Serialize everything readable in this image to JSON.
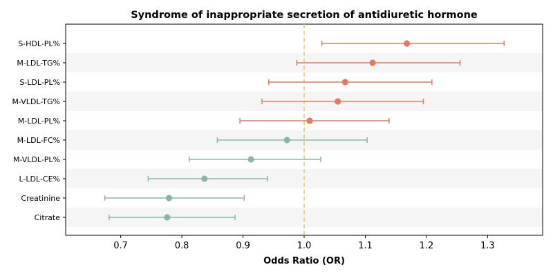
{
  "chart_data": {
    "type": "scatter",
    "title": "Syndrome of inappropriate secretion of antidiuretic hormone",
    "xlabel": "Odds Ratio (OR)",
    "ylabel": "",
    "xlim": [
      0.61,
      1.39
    ],
    "x_ticks": [
      "0.7",
      "0.8",
      "0.9",
      "1.0",
      "1.1",
      "1.2",
      "1.3"
    ],
    "reference_line": 1.0,
    "colors": {
      "positive": "#e07b61",
      "negative": "#86b9a1",
      "reference": "#f0c27a",
      "band": "#f5f5f5"
    },
    "rows": [
      {
        "label": "S-HDL-PL%",
        "or": 1.168,
        "lower": 1.029,
        "upper": 1.327,
        "group": "positive"
      },
      {
        "label": "M-LDL-TG%",
        "or": 1.112,
        "lower": 0.988,
        "upper": 1.255,
        "group": "positive"
      },
      {
        "label": "S-LDL-PL%",
        "or": 1.067,
        "lower": 0.942,
        "upper": 1.209,
        "group": "positive"
      },
      {
        "label": "M-VLDL-TG%",
        "or": 1.055,
        "lower": 0.931,
        "upper": 1.195,
        "group": "positive"
      },
      {
        "label": "M-LDL-PL%",
        "or": 1.009,
        "lower": 0.895,
        "upper": 1.139,
        "group": "positive"
      },
      {
        "label": "M-LDL-FC%",
        "or": 0.972,
        "lower": 0.858,
        "upper": 1.103,
        "group": "negative"
      },
      {
        "label": "M-VLDL-PL%",
        "or": 0.913,
        "lower": 0.812,
        "upper": 1.027,
        "group": "negative"
      },
      {
        "label": "L-LDL-CE%",
        "or": 0.837,
        "lower": 0.745,
        "upper": 0.94,
        "group": "negative"
      },
      {
        "label": "Creatinine",
        "or": 0.779,
        "lower": 0.674,
        "upper": 0.902,
        "group": "negative"
      },
      {
        "label": "Citrate",
        "or": 0.776,
        "lower": 0.681,
        "upper": 0.887,
        "group": "negative"
      }
    ]
  }
}
